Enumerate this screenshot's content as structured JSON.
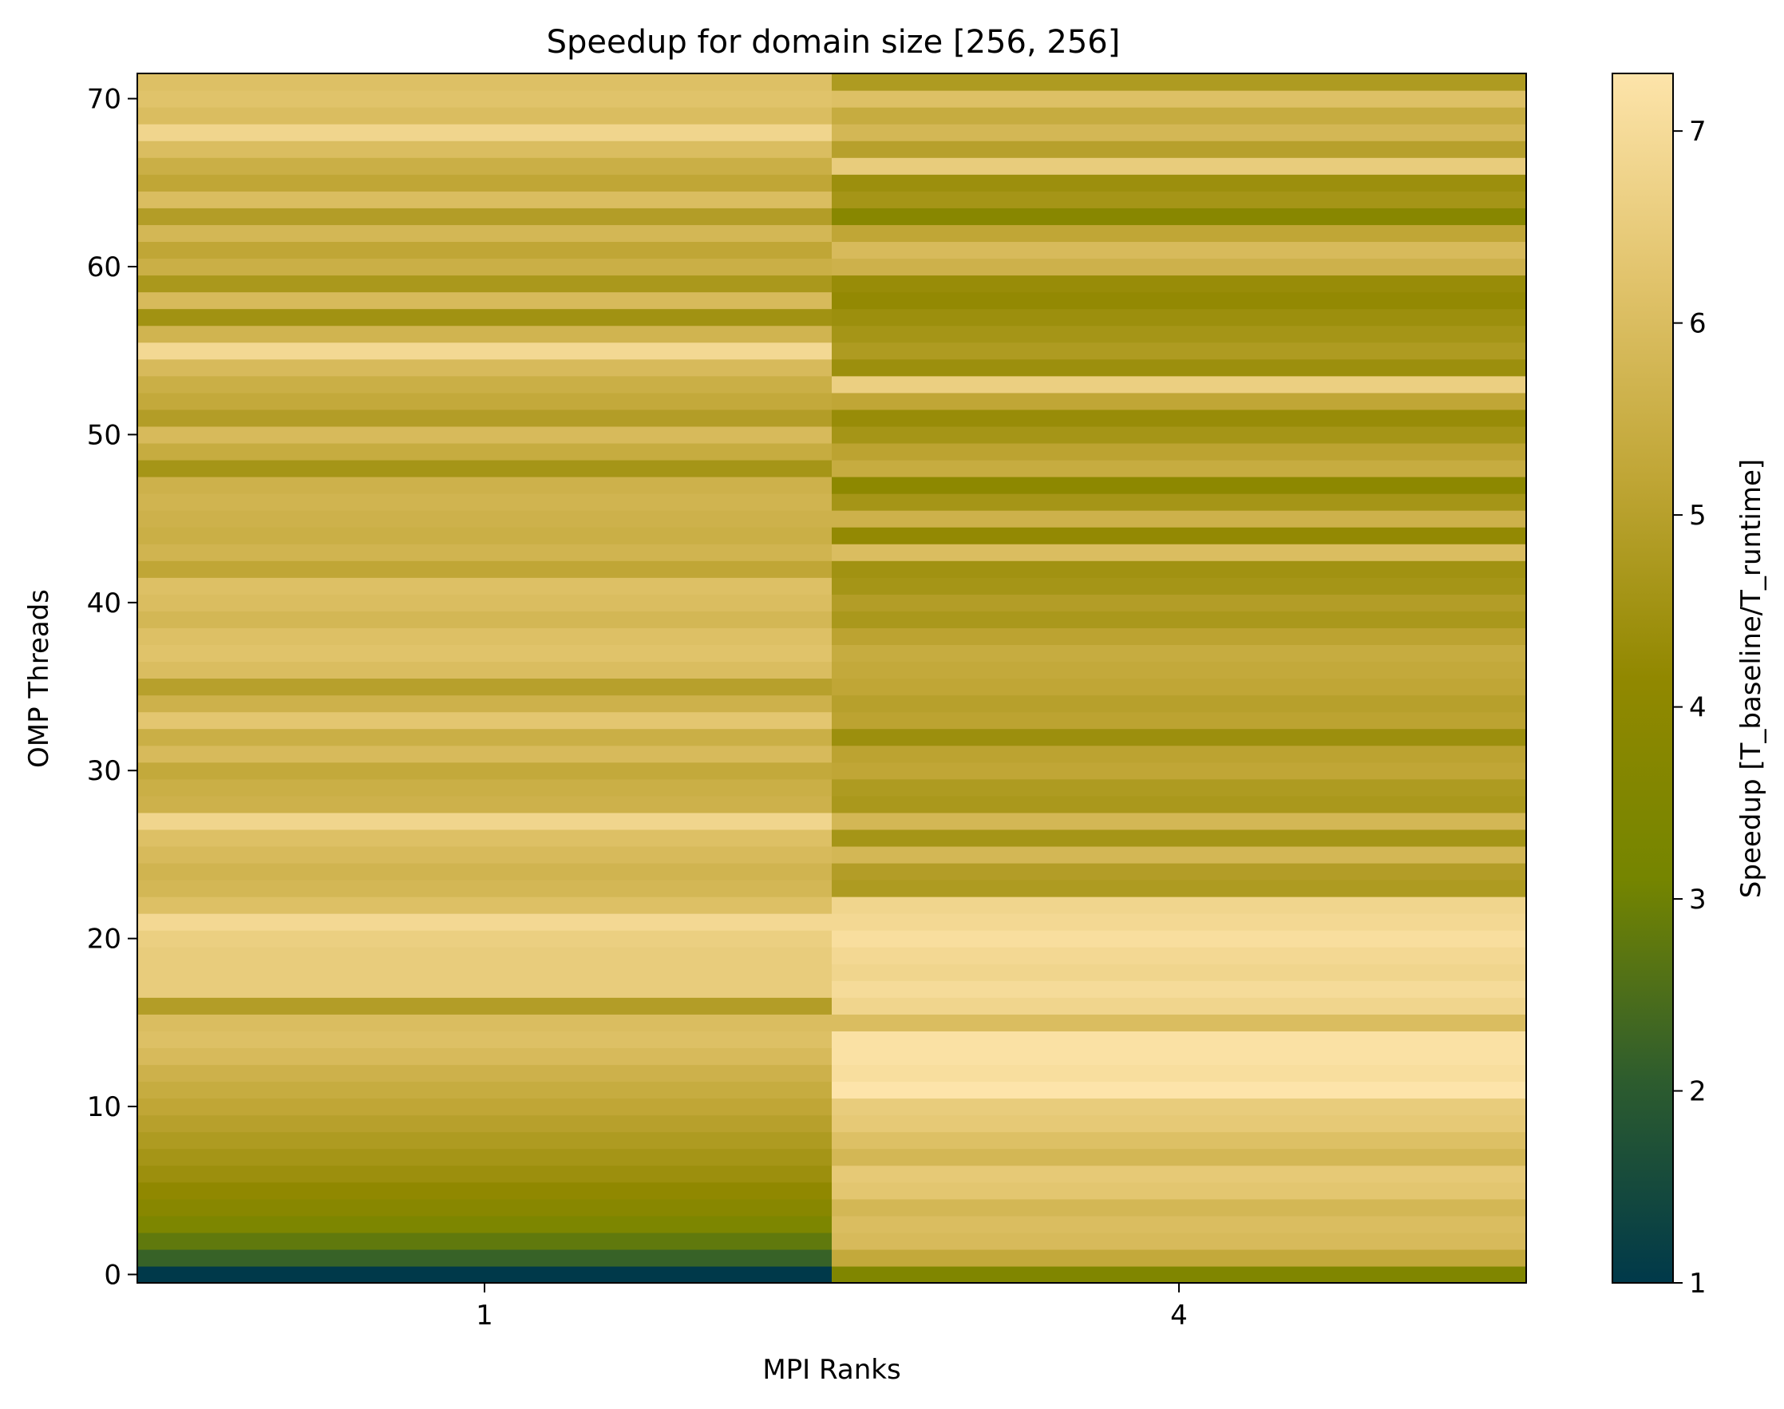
{
  "chart_data": {
    "type": "heatmap",
    "title": "Speedup for domain size [256, 256]",
    "xlabel": "MPI Ranks",
    "ylabel": "OMP Threads",
    "x_categories": [
      "1",
      "4"
    ],
    "y_values": [
      0,
      1,
      2,
      3,
      4,
      5,
      6,
      7,
      8,
      9,
      10,
      11,
      12,
      13,
      14,
      15,
      16,
      17,
      18,
      19,
      20,
      21,
      22,
      23,
      24,
      25,
      26,
      27,
      28,
      29,
      30,
      31,
      32,
      33,
      34,
      35,
      36,
      37,
      38,
      39,
      40,
      41,
      42,
      43,
      44,
      45,
      46,
      47,
      48,
      49,
      50,
      51,
      52,
      53,
      54,
      55,
      56,
      57,
      58,
      59,
      60,
      61,
      62,
      63,
      64,
      65,
      66,
      67,
      68,
      69,
      70,
      71
    ],
    "ylim": [
      -0.5,
      71.5
    ],
    "y_ticks": [
      0,
      10,
      20,
      30,
      40,
      50,
      60,
      70
    ],
    "series": [
      {
        "name": "1",
        "values": [
          1.0,
          2.2,
          2.8,
          3.4,
          3.8,
          4.1,
          4.4,
          4.6,
          4.8,
          5.0,
          5.2,
          5.4,
          5.6,
          5.9,
          6.1,
          6.0,
          4.9,
          6.5,
          6.5,
          6.5,
          6.6,
          6.9,
          6.1,
          5.8,
          5.7,
          5.9,
          6.1,
          6.8,
          5.6,
          5.5,
          5.3,
          5.9,
          5.5,
          6.3,
          5.6,
          5.0,
          6.0,
          6.2,
          6.1,
          5.8,
          6.0,
          6.1,
          5.2,
          5.7,
          5.5,
          5.6,
          5.7,
          5.6,
          4.6,
          5.4,
          5.9,
          4.9,
          5.3,
          5.5,
          5.9,
          6.9,
          5.7,
          4.5,
          5.9,
          4.7,
          5.5,
          5.2,
          5.8,
          4.9,
          6.0,
          5.2,
          5.5,
          6.0,
          6.8,
          6.0,
          6.2,
          6.1
        ]
      },
      {
        "name": "4",
        "values": [
          3.5,
          5.3,
          5.9,
          6.0,
          5.8,
          6.3,
          6.4,
          5.8,
          6.1,
          6.4,
          6.5,
          7.3,
          7.1,
          7.2,
          7.2,
          6.0,
          6.8,
          7.0,
          6.8,
          6.9,
          7.1,
          6.9,
          6.8,
          4.8,
          4.9,
          5.8,
          4.6,
          5.8,
          4.7,
          4.8,
          5.2,
          5.1,
          4.4,
          5.1,
          5.0,
          5.2,
          5.3,
          5.4,
          5.1,
          4.7,
          4.9,
          4.6,
          4.5,
          6.0,
          4.2,
          5.6,
          4.6,
          4.0,
          5.4,
          5.1,
          4.6,
          4.3,
          5.2,
          6.6,
          4.4,
          4.8,
          4.6,
          4.4,
          4.2,
          4.3,
          5.6,
          5.9,
          5.2,
          3.8,
          4.6,
          4.4,
          6.5,
          5.0,
          5.8,
          5.4,
          6.1,
          4.8
        ]
      }
    ],
    "colorbar": {
      "label": "Speedup [T_baseline/T_runtime]",
      "range": [
        1.0,
        7.3
      ],
      "ticks": [
        1,
        2,
        3,
        4,
        5,
        6,
        7
      ]
    },
    "colormap": [
      "#00394a",
      "#2d5c2e",
      "#758500",
      "#918800",
      "#c0a636",
      "#e2c46d",
      "#fde4aa"
    ]
  }
}
